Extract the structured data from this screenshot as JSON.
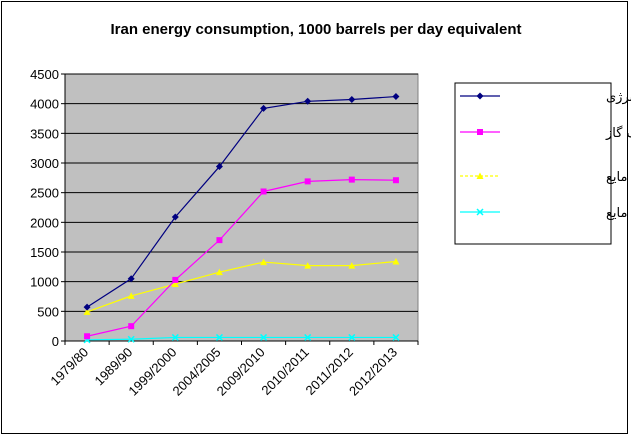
{
  "chart_data": {
    "type": "line",
    "title": "Iran energy consumption, 1000 barrels per day equivalent",
    "categories": [
      "1979/80",
      "1989/90",
      "1999/2000",
      "2004/2005",
      "2009/2010",
      "2010/2011",
      "2011/2012",
      "2012/2013"
    ],
    "ylim": [
      0,
      4500
    ],
    "yticks": [
      0,
      500,
      1000,
      1500,
      2000,
      2500,
      3000,
      3500,
      4000,
      4500
    ],
    "grid": true,
    "legend_position": "right",
    "series": [
      {
        "name": "کل مصرف انرژی",
        "color": "#000080",
        "marker": "diamond",
        "values": [
          570,
          1050,
          2090,
          2940,
          3920,
          4040,
          4070,
          4120
        ]
      },
      {
        "name": "مصرف گاز",
        "color": "#ff00ff",
        "marker": "square",
        "values": [
          80,
          250,
          1030,
          1700,
          2520,
          2690,
          2720,
          2710
        ]
      },
      {
        "name": "سوخت مایع",
        "color": "#ffff00",
        "marker": "triangle",
        "values": [
          490,
          760,
          960,
          1160,
          1330,
          1270,
          1270,
          1340
        ]
      },
      {
        "name": "گاز مایع",
        "color": "#00ffff",
        "marker": "x",
        "values": [
          20,
          30,
          60,
          60,
          60,
          60,
          60,
          60
        ]
      }
    ]
  }
}
